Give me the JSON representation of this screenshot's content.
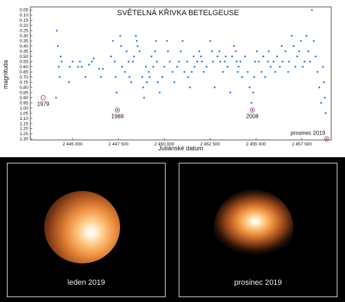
{
  "chart_data": {
    "type": "scatter",
    "title": "SVĚTELNÁ KŘIVKA BETELGEUSE",
    "xlabel": "Juliánské datum",
    "ylabel": "magnituda",
    "xlim": [
      2442700,
      2459100
    ],
    "ylim": [
      0.02,
      1.31
    ],
    "y_inverted": true,
    "grid": false,
    "x_ticks": [
      "2 445 000",
      "2 447 500",
      "2 450 000",
      "2 452 500",
      "2 455 000",
      "2 457 500"
    ],
    "x_tick_values": [
      2445000,
      2447500,
      2450000,
      2452500,
      2455000,
      2457500
    ],
    "y_ticks": [
      "0.05",
      "0.10",
      "0.15",
      "0.20",
      "0.25",
      "0.30",
      "0.35",
      "0.40",
      "0.45",
      "0.50",
      "0.55",
      "0.60",
      "0.65",
      "0.70",
      "0.75",
      "0.80",
      "0.85",
      "0.90",
      "0.95",
      "1.00",
      "1.05",
      "1.10",
      "1.15",
      "1.20",
      "1.25",
      "1.30"
    ],
    "point_color": "#1f78e6",
    "series": [
      {
        "x": [
          2444100,
          2444150,
          2444200,
          2444250,
          2444300,
          2444350,
          2444400,
          2444800,
          2444850,
          2445000,
          2445300,
          2445400,
          2445500,
          2445700,
          2445900,
          2446050,
          2446150,
          2446450,
          2446550,
          2446650,
          2447100,
          2447200,
          2447300,
          2447350,
          2447400,
          2447450,
          2447600,
          2447650,
          2447700,
          2447850,
          2447950,
          2448050,
          2448100,
          2448200,
          2448300,
          2448350,
          2448450,
          2448500,
          2448550,
          2448650,
          2448800,
          2448850,
          2448900,
          2449000,
          2449050,
          2449150,
          2449200,
          2449300,
          2449400,
          2449500,
          2449550,
          2449600,
          2449650,
          2449750,
          2449900,
          2450000,
          2450150,
          2450200,
          2450300,
          2450450,
          2450550,
          2450700,
          2450800,
          2450900,
          2451000,
          2451100,
          2451250,
          2451300,
          2451400,
          2451500,
          2451600,
          2451650,
          2451800,
          2451900,
          2452000,
          2452050,
          2452150,
          2452300,
          2452500,
          2452600,
          2452650,
          2452750,
          2452900,
          2453000,
          2453050,
          2453200,
          2453300,
          2453350,
          2453450,
          2453600,
          2453700,
          2453800,
          2453900,
          2453950,
          2454000,
          2454050,
          2454150,
          2454250,
          2454400,
          2454550,
          2454650,
          2454750,
          2454800,
          2454850,
          2454900,
          2454950,
          2455050,
          2455150,
          2455300,
          2455400,
          2455500,
          2455650,
          2455700,
          2455800,
          2455950,
          2456050,
          2456150,
          2456300,
          2456400,
          2456450,
          2456600,
          2456750,
          2456800,
          2456950,
          2457050,
          2457150,
          2457250,
          2457350,
          2457450,
          2457550,
          2457650,
          2457750,
          2457850,
          2457950,
          2458050,
          2458150,
          2458250,
          2458350,
          2458450,
          2458550,
          2458650,
          2458700,
          2458750,
          2458800,
          2458850
        ],
        "y": [
          0.9,
          0.25,
          0.4,
          0.6,
          0.7,
          0.5,
          0.55,
          0.75,
          0.6,
          0.55,
          0.6,
          0.55,
          0.6,
          0.7,
          0.58,
          0.55,
          0.52,
          0.62,
          0.7,
          0.62,
          0.5,
          0.35,
          0.55,
          0.7,
          0.85,
          1.02,
          0.3,
          0.4,
          0.6,
          0.65,
          0.45,
          0.55,
          0.7,
          0.75,
          0.55,
          0.5,
          0.3,
          0.35,
          0.4,
          0.45,
          0.7,
          0.8,
          0.9,
          0.6,
          0.75,
          0.65,
          0.7,
          0.5,
          0.6,
          0.45,
          0.35,
          0.55,
          0.75,
          0.85,
          0.7,
          0.6,
          0.35,
          0.45,
          0.55,
          0.65,
          0.75,
          0.6,
          0.55,
          0.45,
          0.35,
          0.65,
          0.55,
          0.7,
          0.8,
          0.65,
          0.5,
          0.6,
          0.55,
          0.45,
          0.5,
          0.55,
          0.65,
          0.6,
          0.35,
          0.45,
          0.55,
          0.8,
          0.5,
          0.45,
          0.55,
          0.65,
          0.55,
          0.5,
          0.6,
          0.85,
          0.5,
          0.4,
          0.45,
          0.55,
          0.65,
          0.6,
          0.55,
          0.7,
          0.5,
          0.65,
          0.8,
          0.95,
          1.02,
          0.85,
          0.7,
          0.55,
          0.45,
          0.55,
          0.65,
          0.5,
          0.7,
          0.55,
          0.45,
          0.6,
          0.55,
          0.65,
          0.5,
          0.6,
          0.4,
          0.55,
          0.45,
          0.65,
          0.55,
          0.3,
          0.4,
          0.6,
          0.5,
          0.45,
          0.35,
          0.6,
          0.55,
          0.3,
          0.45,
          0.55,
          0.05,
          0.35,
          0.5,
          0.65,
          0.8,
          0.95,
          0.6,
          0.75,
          0.9,
          1.05,
          1.3
        ]
      }
    ],
    "annotations": [
      {
        "label": "1979",
        "x": 2443400,
        "y": 0.9
      },
      {
        "label": "1988",
        "x": 2447450,
        "y": 1.02
      },
      {
        "label": "2008",
        "x": 2454800,
        "y": 1.02
      },
      {
        "label": "prosinec 2019",
        "x": 2458850,
        "y": 1.3
      }
    ]
  },
  "photos": [
    {
      "caption": "leden 2019"
    },
    {
      "caption": "prosinec 2019"
    }
  ]
}
